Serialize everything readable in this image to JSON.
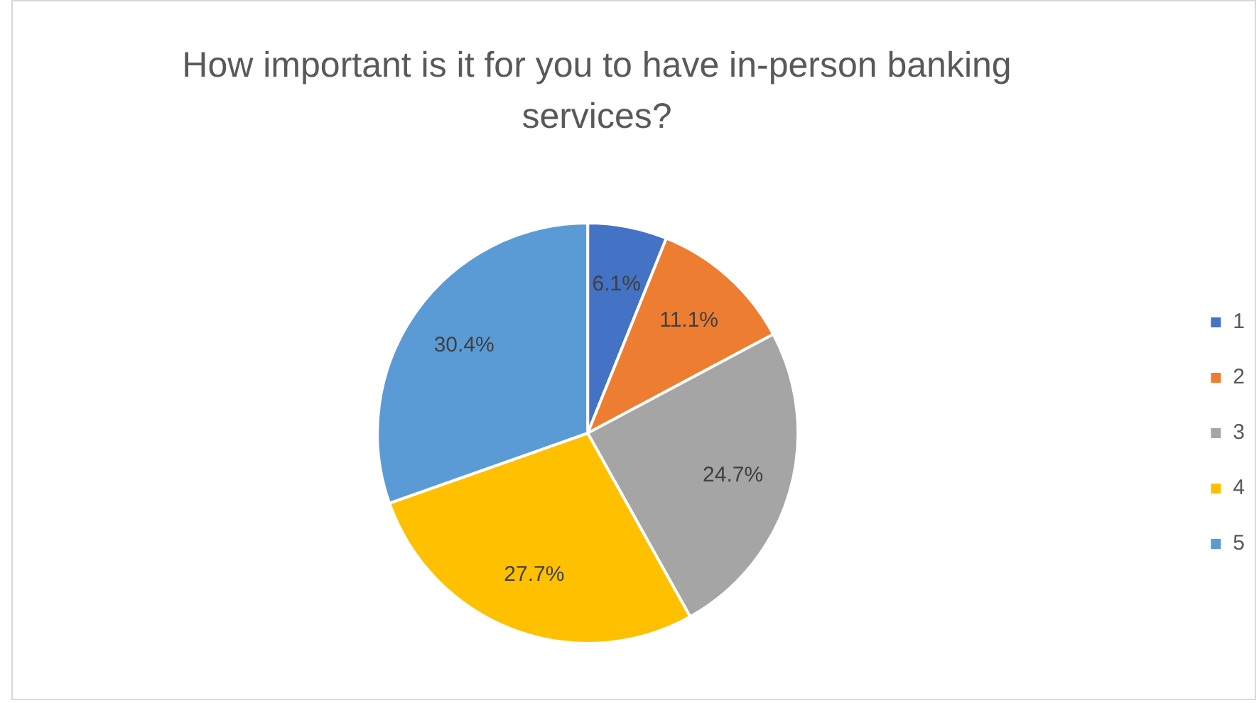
{
  "chart_data": {
    "type": "pie",
    "title": "How important is it for you to have in-person banking services?",
    "categories": [
      "1",
      "2",
      "3",
      "4",
      "5"
    ],
    "values": [
      6.1,
      11.1,
      24.7,
      27.7,
      30.4
    ],
    "colors": [
      "#4472c4",
      "#ed7d31",
      "#a5a5a5",
      "#ffc000",
      "#5b9bd5"
    ],
    "value_labels": [
      "6.1%",
      "11.1%",
      "24.7%",
      "27.7%",
      "30.4%"
    ],
    "legend": "right"
  }
}
